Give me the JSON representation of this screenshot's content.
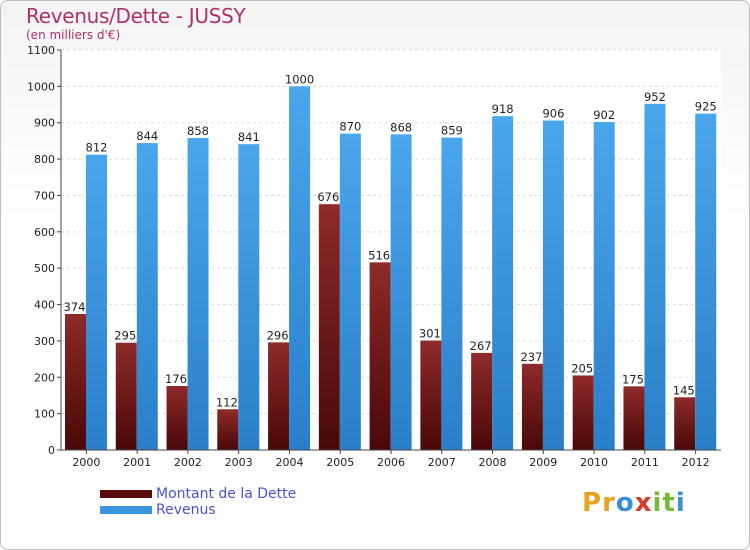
{
  "title": "Revenus/Dette - JUSSY",
  "subtitle": "(en milliers d'€)",
  "logo": {
    "letters": [
      "P",
      "r",
      "o",
      "x",
      "i",
      "t",
      "i"
    ],
    "colors": [
      "#e8a21c",
      "#e8a21c",
      "#3a8fd8",
      "#d8372a",
      "#7ab83a",
      "#7ab83a",
      "#3a8fd8"
    ]
  },
  "chart_data": {
    "type": "bar",
    "categories": [
      "2000",
      "2001",
      "2002",
      "2003",
      "2004",
      "2005",
      "2006",
      "2007",
      "2008",
      "2009",
      "2010",
      "2011",
      "2012"
    ],
    "series": [
      {
        "name": "Montant de la Dette",
        "color": "#7a1a1a",
        "values": [
          374,
          295,
          176,
          112,
          296,
          676,
          516,
          301,
          267,
          237,
          205,
          175,
          145
        ]
      },
      {
        "name": "Revenus",
        "color": "#3a95dd",
        "values": [
          812,
          844,
          858,
          841,
          1000,
          870,
          868,
          859,
          918,
          906,
          902,
          952,
          925
        ]
      }
    ],
    "yticks": [
      0,
      100,
      200,
      300,
      400,
      500,
      600,
      700,
      800,
      900,
      1000,
      1100
    ],
    "ylim": [
      0,
      1100
    ],
    "grid": true,
    "legend": "bottom-left"
  }
}
